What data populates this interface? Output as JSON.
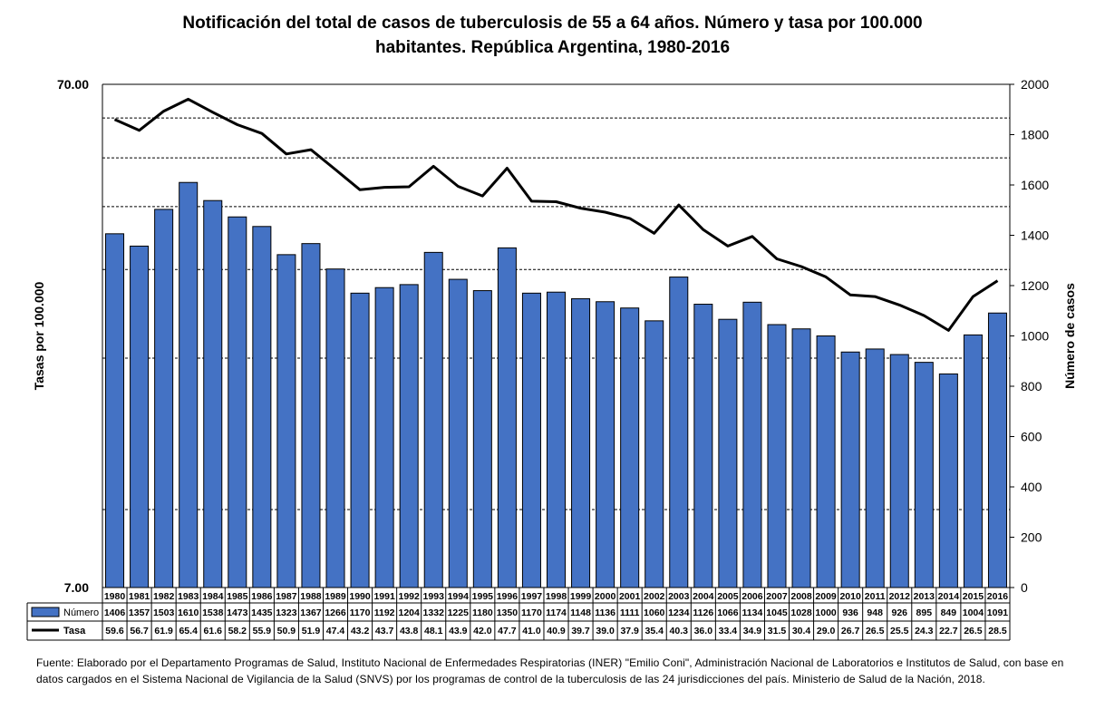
{
  "title_line1": "Notificación del total de casos de tuberculosis de 55 a 64 años. Número y tasa por 100.000",
  "title_line2": "habitantes. República Argentina, 1980-2016",
  "footnote": "Fuente: Elaborado por el Departamento Programas de Salud, Instituto Nacional de Enfermedades Respiratorias (INER) \"Emilio Coni\", Administración Nacional de Laboratorios e Institutos de Salud, con base en datos cargados en el Sistema Nacional de Vigilancia de la Salud (SNVS) por los programas de control de la tuberculosis de las 24 jurisdicciones del país. Ministerio de Salud de la Nación, 2018.",
  "chart_data": {
    "type": "bar",
    "categories": [
      "1980",
      "1981",
      "1982",
      "1983",
      "1984",
      "1985",
      "1986",
      "1987",
      "1988",
      "1989",
      "1990",
      "1991",
      "1992",
      "1993",
      "1994",
      "1995",
      "1996",
      "1997",
      "1998",
      "1999",
      "2000",
      "2001",
      "2002",
      "2003",
      "2004",
      "2005",
      "2006",
      "2007",
      "2008",
      "2009",
      "2010",
      "2011",
      "2012",
      "2013",
      "2014",
      "2015",
      "2016"
    ],
    "series": [
      {
        "name": "Número",
        "type": "bar",
        "axis": "right",
        "color": "#4472C4",
        "values": [
          1406,
          1357,
          1503,
          1610,
          1538,
          1473,
          1435,
          1323,
          1367,
          1266,
          1170,
          1192,
          1204,
          1332,
          1225,
          1180,
          1350,
          1170,
          1174,
          1148,
          1136,
          1111,
          1060,
          1234,
          1126,
          1066,
          1134,
          1045,
          1028,
          1000,
          936,
          948,
          926,
          895,
          849,
          1004,
          1091
        ]
      },
      {
        "name": "Tasa",
        "type": "line",
        "axis": "left",
        "color": "#000000",
        "values": [
          59.6,
          56.7,
          61.9,
          65.4,
          61.6,
          58.2,
          55.9,
          50.9,
          51.9,
          47.4,
          43.2,
          43.7,
          43.8,
          48.1,
          43.9,
          42.0,
          47.7,
          41.0,
          40.9,
          39.7,
          39.0,
          37.9,
          35.4,
          40.3,
          36.0,
          33.4,
          34.9,
          31.5,
          30.4,
          29.0,
          26.7,
          26.5,
          25.5,
          24.3,
          22.7,
          26.5,
          28.5
        ]
      }
    ],
    "ylabel": "Tasas por 100.000",
    "y2label": "Número de casos",
    "ylim": [
      7,
      70
    ],
    "yscale": "log",
    "yticks": [
      "70.00",
      "7.00"
    ],
    "y2lim": [
      0,
      2000
    ],
    "y2ticks": [
      "0",
      "200",
      "400",
      "600",
      "800",
      "1000",
      "1200",
      "1400",
      "1600",
      "1800",
      "2000"
    ],
    "grid": true,
    "legend": "data-table-below",
    "legend_labels": [
      "Número",
      "Tasa"
    ]
  }
}
